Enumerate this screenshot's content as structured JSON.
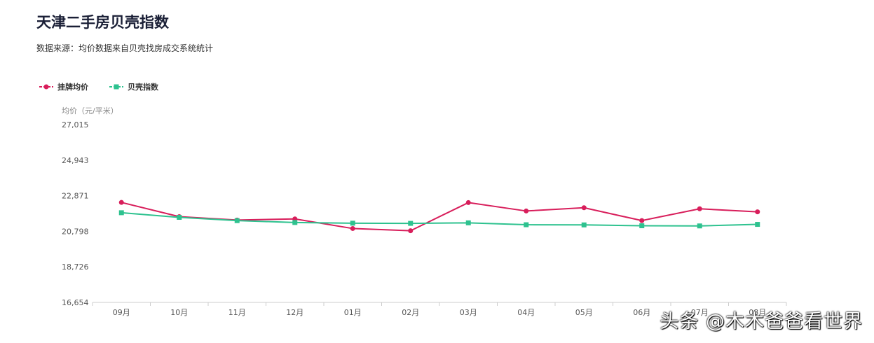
{
  "header": {
    "title": "天津二手房贝壳指数",
    "subtitle": "数据来源：均价数据来自贝壳找房成交系统统计"
  },
  "watermark": "头条 @木木爸爸看世界",
  "chart_data": {
    "type": "line",
    "ylabel": "均价（元/平米）",
    "categories": [
      "09月",
      "10月",
      "11月",
      "12月",
      "01月",
      "02月",
      "03月",
      "04月",
      "05月",
      "06月",
      "07月",
      "08月"
    ],
    "yticks": [
      "27,015",
      "24,943",
      "22,871",
      "20,798",
      "18,726",
      "16,654"
    ],
    "ylim": [
      16654,
      27015
    ],
    "legend_position": "top-left",
    "grid": false,
    "series": [
      {
        "name": "挂牌均价",
        "color": "#d81e5b",
        "marker": "circle",
        "values": [
          22480,
          21650,
          21450,
          21520,
          20960,
          20830,
          22470,
          21980,
          22170,
          21420,
          22110,
          21930
        ]
      },
      {
        "name": "贝壳指数",
        "color": "#2ec28f",
        "marker": "square",
        "values": [
          21880,
          21610,
          21420,
          21310,
          21270,
          21260,
          21290,
          21180,
          21170,
          21120,
          21110,
          21200
        ]
      }
    ]
  }
}
